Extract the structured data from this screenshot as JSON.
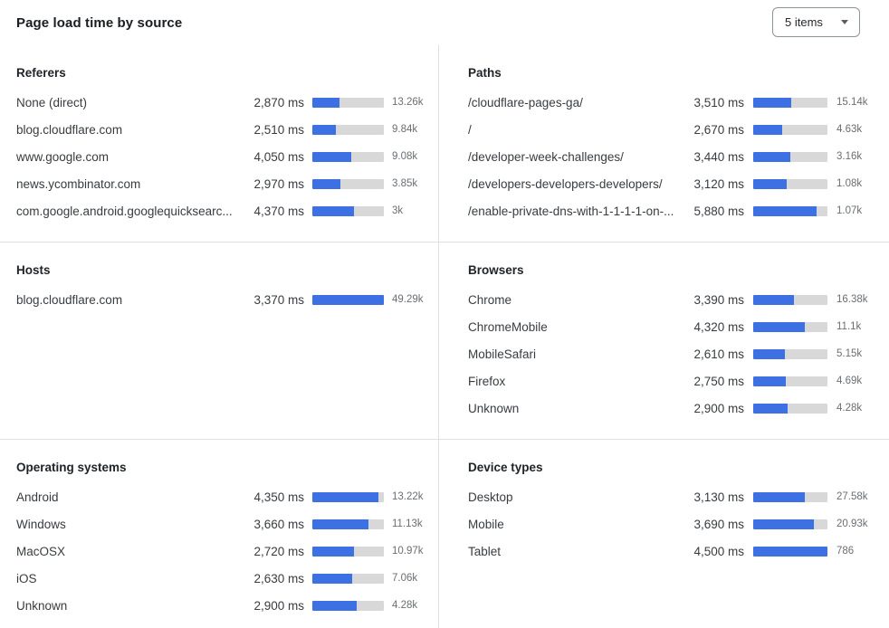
{
  "page": {
    "title": "Page load time by source",
    "dropdown": {
      "value": "5 items"
    }
  },
  "colors": {
    "bar_fill": "#3c70e3",
    "bar_track": "#d8d8d8",
    "divider": "#e0e0e0"
  },
  "chart_data": [
    {
      "type": "bar",
      "title": "Referers",
      "unit": "ms",
      "scale_max_ms": 7500,
      "rows": [
        {
          "label": "None (direct)",
          "ms": 2870,
          "ms_label": "2,870 ms",
          "count_label": "13.26k"
        },
        {
          "label": "blog.cloudflare.com",
          "ms": 2510,
          "ms_label": "2,510 ms",
          "count_label": "9.84k"
        },
        {
          "label": "www.google.com",
          "ms": 4050,
          "ms_label": "4,050 ms",
          "count_label": "9.08k"
        },
        {
          "label": "news.ycombinator.com",
          "ms": 2970,
          "ms_label": "2,970 ms",
          "count_label": "3.85k"
        },
        {
          "label": "com.google.android.googlequicksearc...",
          "ms": 4370,
          "ms_label": "4,370 ms",
          "count_label": "3k"
        }
      ]
    },
    {
      "type": "bar",
      "title": "Paths",
      "unit": "ms",
      "scale_max_ms": 6900,
      "rows": [
        {
          "label": "/cloudflare-pages-ga/",
          "ms": 3510,
          "ms_label": "3,510 ms",
          "count_label": "15.14k"
        },
        {
          "label": "/",
          "ms": 2670,
          "ms_label": "2,670 ms",
          "count_label": "4.63k"
        },
        {
          "label": "/developer-week-challenges/",
          "ms": 3440,
          "ms_label": "3,440 ms",
          "count_label": "3.16k"
        },
        {
          "label": "/developers-developers-developers/",
          "ms": 3120,
          "ms_label": "3,120 ms",
          "count_label": "1.08k"
        },
        {
          "label": "/enable-private-dns-with-1-1-1-1-on-...",
          "ms": 5880,
          "ms_label": "5,880 ms",
          "count_label": "1.07k"
        }
      ]
    },
    {
      "type": "bar",
      "title": "Hosts",
      "unit": "ms",
      "scale_max_ms": 3370,
      "rows": [
        {
          "label": "blog.cloudflare.com",
          "ms": 3370,
          "ms_label": "3,370 ms",
          "count_label": "49.29k"
        }
      ]
    },
    {
      "type": "bar",
      "title": "Browsers",
      "unit": "ms",
      "scale_max_ms": 6200,
      "rows": [
        {
          "label": "Chrome",
          "ms": 3390,
          "ms_label": "3,390 ms",
          "count_label": "16.38k"
        },
        {
          "label": "ChromeMobile",
          "ms": 4320,
          "ms_label": "4,320 ms",
          "count_label": "11.1k"
        },
        {
          "label": "MobileSafari",
          "ms": 2610,
          "ms_label": "2,610 ms",
          "count_label": "5.15k"
        },
        {
          "label": "Firefox",
          "ms": 2750,
          "ms_label": "2,750 ms",
          "count_label": "4.69k"
        },
        {
          "label": "Unknown",
          "ms": 2900,
          "ms_label": "2,900 ms",
          "count_label": "4.28k"
        }
      ]
    },
    {
      "type": "bar",
      "title": "Operating systems",
      "unit": "ms",
      "scale_max_ms": 4700,
      "rows": [
        {
          "label": "Android",
          "ms": 4350,
          "ms_label": "4,350 ms",
          "count_label": "13.22k"
        },
        {
          "label": "Windows",
          "ms": 3660,
          "ms_label": "3,660 ms",
          "count_label": "11.13k"
        },
        {
          "label": "MacOSX",
          "ms": 2720,
          "ms_label": "2,720 ms",
          "count_label": "10.97k"
        },
        {
          "label": "iOS",
          "ms": 2630,
          "ms_label": "2,630 ms",
          "count_label": "7.06k"
        },
        {
          "label": "Unknown",
          "ms": 2900,
          "ms_label": "2,900 ms",
          "count_label": "4.28k"
        }
      ]
    },
    {
      "type": "bar",
      "title": "Device types",
      "unit": "ms",
      "scale_max_ms": 4500,
      "rows": [
        {
          "label": "Desktop",
          "ms": 3130,
          "ms_label": "3,130 ms",
          "count_label": "27.58k"
        },
        {
          "label": "Mobile",
          "ms": 3690,
          "ms_label": "3,690 ms",
          "count_label": "20.93k"
        },
        {
          "label": "Tablet",
          "ms": 4500,
          "ms_label": "4,500 ms",
          "count_label": "786"
        }
      ]
    }
  ]
}
